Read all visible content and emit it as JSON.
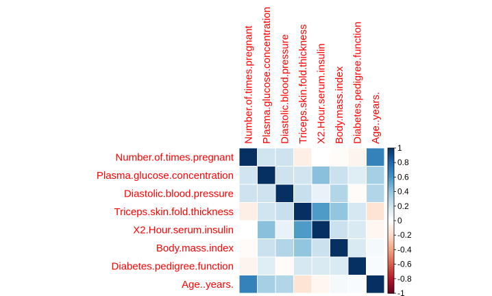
{
  "chart_data": {
    "type": "heatmap",
    "variables": [
      "Number.of.times.pregnant",
      "Plasma.glucose.concentration",
      "Diastolic.blood.pressure",
      "Triceps.skin.fold.thickness",
      "X2.Hour.serum.insulin",
      "Body.mass.index",
      "Diabetes.pedigree.function",
      "Age..years."
    ],
    "matrix": [
      [
        1.0,
        0.2,
        0.21,
        -0.09,
        0.0,
        -0.02,
        -0.06,
        0.68
      ],
      [
        0.2,
        1.0,
        0.21,
        0.2,
        0.42,
        0.22,
        0.14,
        0.34
      ],
      [
        0.21,
        0.21,
        1.0,
        0.23,
        0.1,
        0.3,
        -0.02,
        0.3
      ],
      [
        -0.09,
        0.2,
        0.23,
        1.0,
        0.57,
        0.4,
        0.18,
        -0.15
      ],
      [
        0.0,
        0.42,
        0.1,
        0.57,
        1.0,
        0.22,
        0.16,
        -0.05
      ],
      [
        -0.02,
        0.22,
        0.3,
        0.4,
        0.22,
        1.0,
        0.16,
        0.05
      ],
      [
        -0.06,
        0.14,
        -0.02,
        0.18,
        0.16,
        0.16,
        1.0,
        0.03
      ],
      [
        0.68,
        0.34,
        0.3,
        -0.15,
        -0.05,
        0.05,
        0.03,
        1.0
      ]
    ],
    "legend_ticks": [
      "1",
      "0.8",
      "0.6",
      "0.4",
      "0.2",
      "0",
      "-0.2",
      "-0.4",
      "-0.6",
      "-0.8",
      "-1"
    ],
    "range": [
      -1,
      1
    ],
    "colors": {
      "label": "#ff0000",
      "negative_end": "#67001f",
      "positive_end": "#053061",
      "mid": "#ffffff"
    }
  }
}
